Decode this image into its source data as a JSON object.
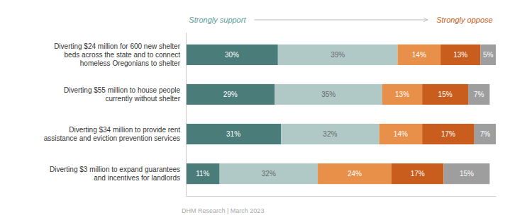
{
  "chart_data": {
    "type": "bar",
    "orientation": "horizontal",
    "stacked": true,
    "data_labels": true,
    "tick_labels": "y",
    "annotations": [
      "Strongly support",
      "Strongly oppose",
      "DHM Research | March 2023"
    ],
    "categories": [
      "Diverting $24 million for 600 new shelter\nbeds across the state and to connect\nhomeless Oregonians to shelter",
      "Diverting $55 million to house people\ncurrently without shelter",
      "Diverting $34 million to provide rent\nassistance and eviction prevention services",
      "Diverting $3 million to expand guarantees\nand incentives for landlords"
    ],
    "series": [
      {
        "color": "#4a7c7a",
        "values": [
          30,
          29,
          31,
          11
        ],
        "value_labels": [
          "30%",
          "29%",
          "31%",
          "11%"
        ]
      },
      {
        "color": "#b0c9c7",
        "values": [
          39,
          35,
          32,
          32
        ],
        "value_labels": [
          "39%",
          "35%",
          "32%",
          "32%"
        ]
      },
      {
        "color": "#e8904a",
        "values": [
          14,
          13,
          14,
          24
        ],
        "value_labels": [
          "14%",
          "13%",
          "14%",
          "24%"
        ]
      },
      {
        "color": "#c85d1e",
        "values": [
          13,
          15,
          17,
          17
        ],
        "value_labels": [
          "13%",
          "15%",
          "17%",
          "17%"
        ]
      },
      {
        "color": "#9e9e9e",
        "values": [
          5,
          7,
          7,
          15
        ],
        "value_labels": [
          "5%",
          "7%",
          "7%",
          "15%"
        ]
      }
    ],
    "xlim": [
      0,
      101
    ]
  }
}
